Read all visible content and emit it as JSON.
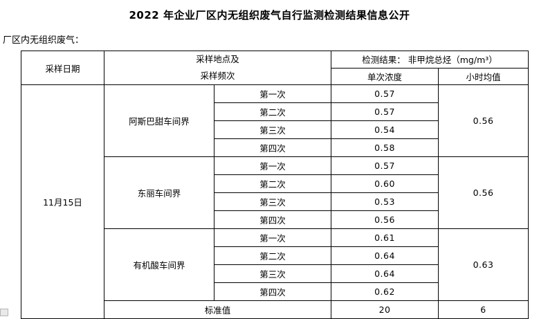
{
  "page": {
    "title": "2022 年企业厂区内无组织废气自行监测检测结果信息公开",
    "section_label": "厂区内无组织废气："
  },
  "table": {
    "header": {
      "date": "采样日期",
      "location_line1": "采样地点及",
      "location_line2": "采样频次",
      "result": "检测结果： 非甲烷总烃（mg/m³）",
      "single_concentration": "单次浓度",
      "hourly_average": "小时均值"
    },
    "sampling_date": "11月15日",
    "groups": [
      {
        "location": "阿斯巴甜车间界",
        "readings": [
          {
            "label": "第一次",
            "value": "0.57"
          },
          {
            "label": "第二次",
            "value": "0.57"
          },
          {
            "label": "第三次",
            "value": "0.54"
          },
          {
            "label": "第四次",
            "value": "0.58"
          }
        ],
        "hourly_avg": "0.56"
      },
      {
        "location": "东丽车间界",
        "readings": [
          {
            "label": "第一次",
            "value": "0.57"
          },
          {
            "label": "第二次",
            "value": "0.60"
          },
          {
            "label": "第三次",
            "value": "0.53"
          },
          {
            "label": "第四次",
            "value": "0.56"
          }
        ],
        "hourly_avg": "0.56"
      },
      {
        "location": "有机酸车间界",
        "readings": [
          {
            "label": "第一次",
            "value": "0.61"
          },
          {
            "label": "第二次",
            "value": "0.64"
          },
          {
            "label": "第三次",
            "value": "0.64"
          },
          {
            "label": "第四次",
            "value": "0.62"
          }
        ],
        "hourly_avg": "0.63"
      }
    ],
    "standard": {
      "label": "标准值",
      "single": "20",
      "hourly": "6"
    }
  }
}
